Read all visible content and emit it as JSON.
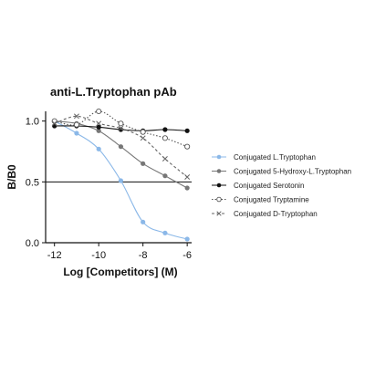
{
  "chart_data": {
    "type": "scatter",
    "title": "anti-L.Tryptophan pAb",
    "xlabel": "Log [Competitors] (M)",
    "ylabel": "B/B0",
    "xlim": [
      -12.4,
      -5.8
    ],
    "ylim": [
      0.0,
      1.08
    ],
    "x_ticks": [
      -12,
      -10,
      -8,
      -6
    ],
    "y_ticks": [
      0.0,
      0.5,
      1.0
    ],
    "reference_line_y": 0.5,
    "grid": false,
    "legend_position": "right",
    "series": [
      {
        "name": "Conjugated L.Tryptophan",
        "color": "#8bb8e8",
        "marker": "filled-circle",
        "line": "solid",
        "x": [
          -12,
          -11,
          -10,
          -9,
          -8,
          -7,
          -6
        ],
        "y": [
          1.0,
          0.9,
          0.77,
          0.51,
          0.17,
          0.08,
          0.03
        ]
      },
      {
        "name": "Conjugated 5-Hydroxy-L.Tryptophan",
        "color": "#777777",
        "marker": "filled-circle",
        "line": "solid",
        "x": [
          -12,
          -11,
          -10,
          -9,
          -8,
          -7,
          -6
        ],
        "y": [
          1.0,
          0.98,
          0.92,
          0.79,
          0.65,
          0.55,
          0.45
        ]
      },
      {
        "name": "Conjugated Serotonin",
        "color": "#111111",
        "marker": "filled-circle",
        "line": "solid",
        "x": [
          -12,
          -11,
          -10,
          -9,
          -8,
          -7,
          -6
        ],
        "y": [
          0.96,
          0.96,
          0.95,
          0.93,
          0.92,
          0.93,
          0.92
        ]
      },
      {
        "name": "Conjugated Tryptamine",
        "color": "#555555",
        "marker": "open-circle",
        "line": "dotted",
        "x": [
          -12,
          -11,
          -10,
          -9,
          -8,
          -7,
          -6
        ],
        "y": [
          1.0,
          0.97,
          1.08,
          0.98,
          0.91,
          0.86,
          0.79
        ]
      },
      {
        "name": "Conjugated D-Tryptophan",
        "color": "#666666",
        "marker": "x",
        "line": "dashed",
        "x": [
          -12,
          -11,
          -10,
          -9,
          -8,
          -7,
          -6
        ],
        "y": [
          0.98,
          1.04,
          0.98,
          0.94,
          0.86,
          0.69,
          0.54
        ]
      }
    ]
  }
}
